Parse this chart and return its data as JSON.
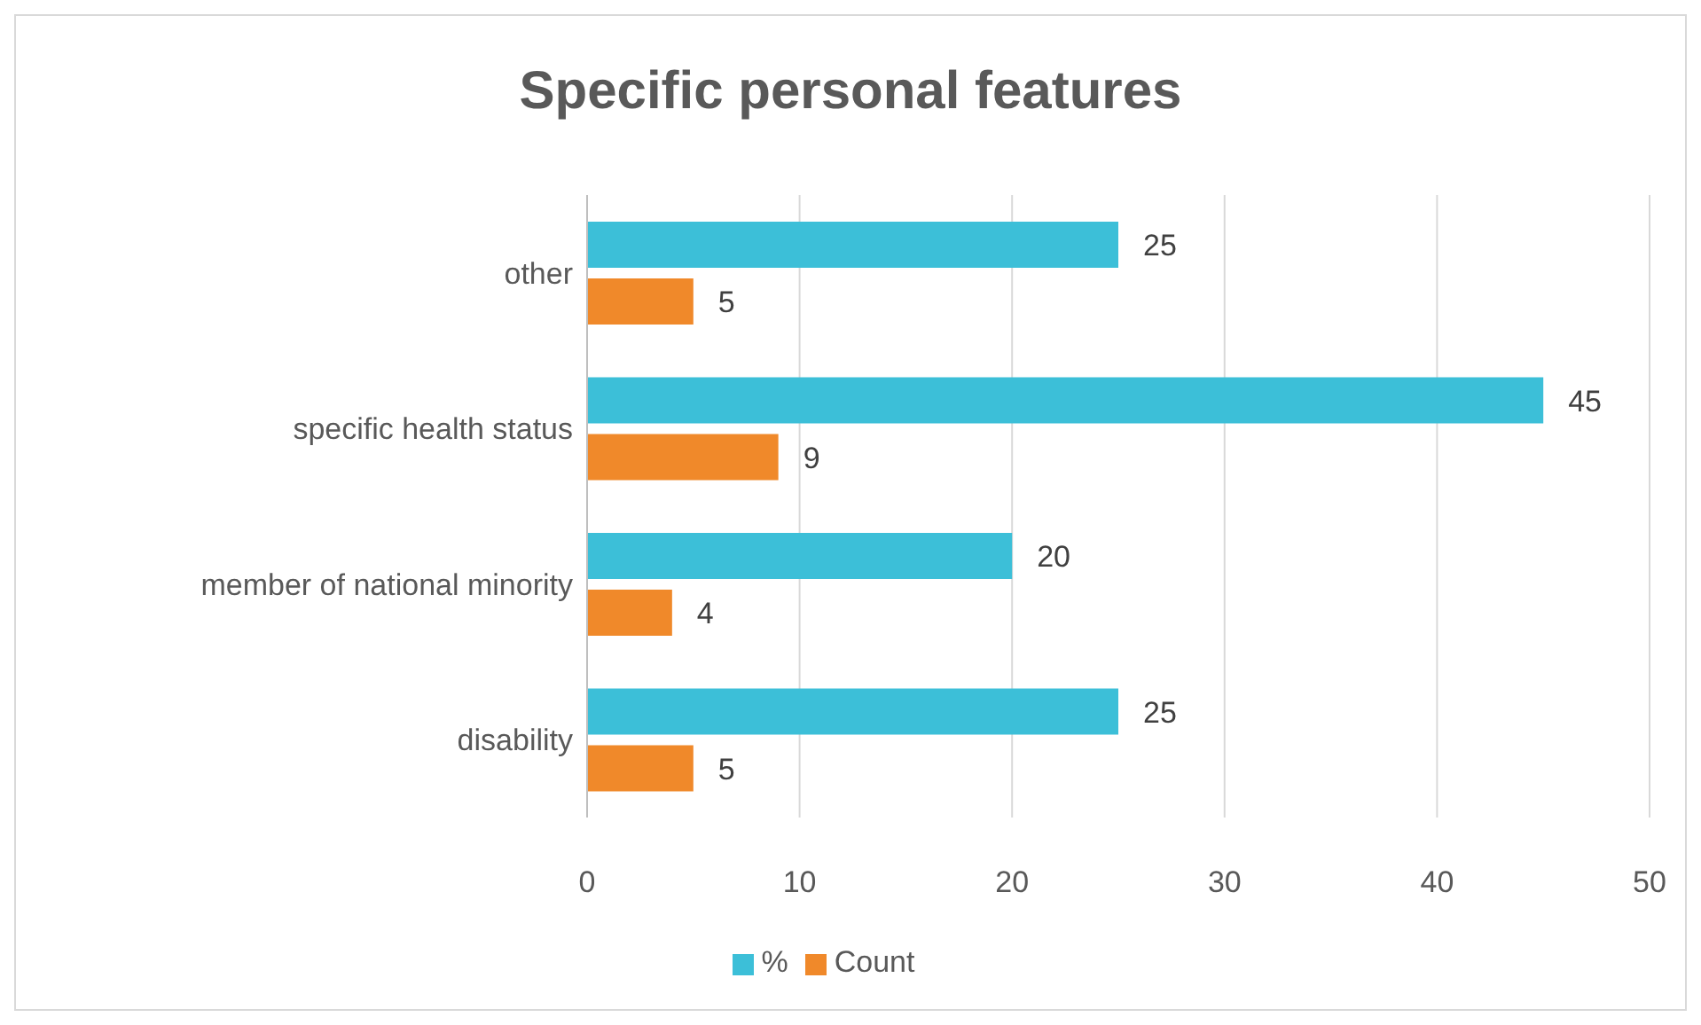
{
  "chart_data": {
    "type": "bar",
    "orientation": "horizontal",
    "title": "Specific personal features",
    "categories": [
      "other",
      "specific health status",
      "member of national minority",
      "disability"
    ],
    "series": [
      {
        "name": "%",
        "color": "#3cbfd8",
        "values": [
          25,
          45,
          20,
          25
        ]
      },
      {
        "name": "Count",
        "color": "#f0892a",
        "values": [
          5,
          9,
          4,
          5
        ]
      }
    ],
    "xlim": [
      0,
      50
    ],
    "xticks": [
      0,
      10,
      20,
      30,
      40,
      50
    ],
    "grid": "x",
    "legend": "bottom",
    "data_labels": true
  }
}
